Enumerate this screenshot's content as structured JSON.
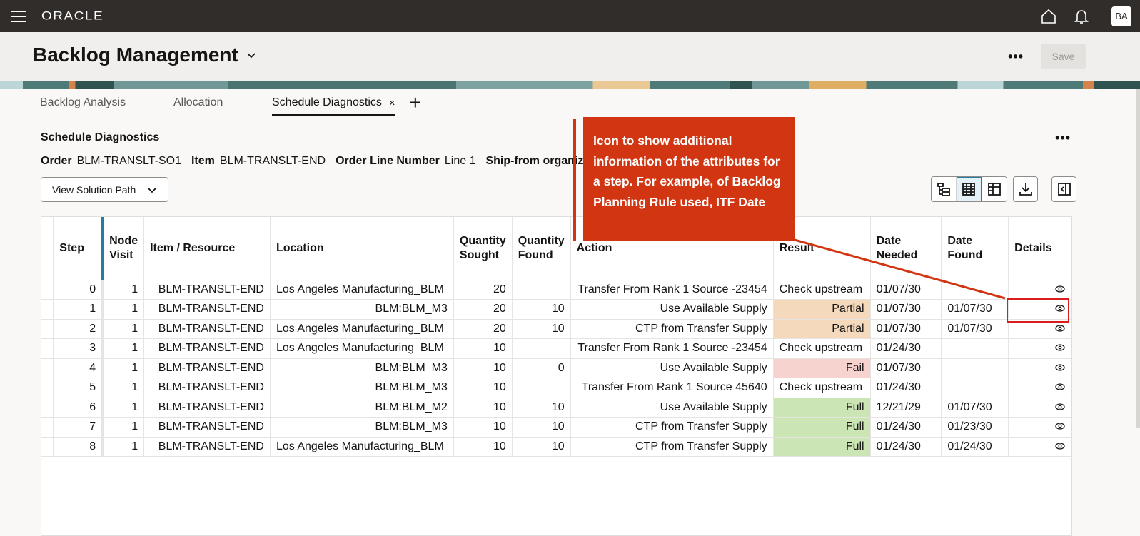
{
  "topbar": {
    "logo": "ORACLE",
    "avatar": "BA",
    "icons": [
      "menu-icon",
      "home-icon",
      "bell-icon"
    ]
  },
  "header": {
    "title": "Backlog Management",
    "more_label": "•••",
    "save_label": "Save"
  },
  "tabs": [
    {
      "label": "Backlog Analysis",
      "active": false
    },
    {
      "label": "Allocation",
      "active": false
    },
    {
      "label": "Schedule Diagnostics",
      "active": true,
      "close": "×"
    }
  ],
  "add_tab": "+",
  "section": {
    "title": "Schedule Diagnostics",
    "more_label": "•••",
    "meta": [
      {
        "label": "Order",
        "value": "BLM-TRANSLT-SO1"
      },
      {
        "label": "Item",
        "value": "BLM-TRANSLT-END"
      },
      {
        "label": "Order Line Number",
        "value": "Line 1"
      },
      {
        "label": "Ship-from organiza",
        "value": ""
      }
    ],
    "view_solution_path": "View Solution Path"
  },
  "toolbar": [
    "hierarchy-view-icon",
    "grid-view-icon",
    "freeze-columns-icon",
    "download-icon",
    "panel-toggle-icon"
  ],
  "table": {
    "headers": [
      "Step",
      "Node Visit",
      "Item / Resource",
      "Location",
      "Quantity Sought",
      "Quantity Found",
      "Action",
      "Result",
      "Date Needed",
      "Date Found",
      "Details"
    ],
    "rows": [
      [
        "0",
        "1",
        "BLM-TRANSLT-END",
        "Los Angeles Manufacturing_BLM",
        "20",
        "",
        "Transfer From Rank 1 Source -23454",
        "Check upstream",
        "01/07/30",
        ""
      ],
      [
        "1",
        "1",
        "BLM-TRANSLT-END",
        "BLM:BLM_M3",
        "20",
        "10",
        "Use Available Supply",
        "Partial",
        "01/07/30",
        "01/07/30"
      ],
      [
        "2",
        "1",
        "BLM-TRANSLT-END",
        "Los Angeles Manufacturing_BLM",
        "20",
        "10",
        "CTP from Transfer Supply",
        "Partial",
        "01/07/30",
        "01/07/30"
      ],
      [
        "3",
        "1",
        "BLM-TRANSLT-END",
        "Los Angeles Manufacturing_BLM",
        "10",
        "",
        "Transfer From Rank 1 Source -23454",
        "Check upstream",
        "01/24/30",
        ""
      ],
      [
        "4",
        "1",
        "BLM-TRANSLT-END",
        "BLM:BLM_M3",
        "10",
        "0",
        "Use Available Supply",
        "Fail",
        "01/07/30",
        ""
      ],
      [
        "5",
        "1",
        "BLM-TRANSLT-END",
        "BLM:BLM_M3",
        "10",
        "",
        "Transfer From Rank 1 Source 45640",
        "Check upstream",
        "01/24/30",
        ""
      ],
      [
        "6",
        "1",
        "BLM-TRANSLT-END",
        "BLM:BLM_M2",
        "10",
        "10",
        "Use Available Supply",
        "Full",
        "12/21/29",
        "01/07/30"
      ],
      [
        "7",
        "1",
        "BLM-TRANSLT-END",
        "BLM:BLM_M3",
        "10",
        "10",
        "CTP from Transfer Supply",
        "Full",
        "01/24/30",
        "01/23/30"
      ],
      [
        "8",
        "1",
        "BLM-TRANSLT-END",
        "Los Angeles Manufacturing_BLM",
        "10",
        "10",
        "CTP from Transfer Supply",
        "Full",
        "01/24/30",
        "01/24/30"
      ]
    ]
  },
  "callout": {
    "text": "Icon to show additional information of the attributes for a step. For example, of Backlog Planning Rule used, ITF Date",
    "color": "#d13511"
  },
  "colors": {
    "partial": "#f5d9bd",
    "fail": "#f7d3cf",
    "full": "#cbe5b5",
    "topbar": "#312d2a"
  }
}
